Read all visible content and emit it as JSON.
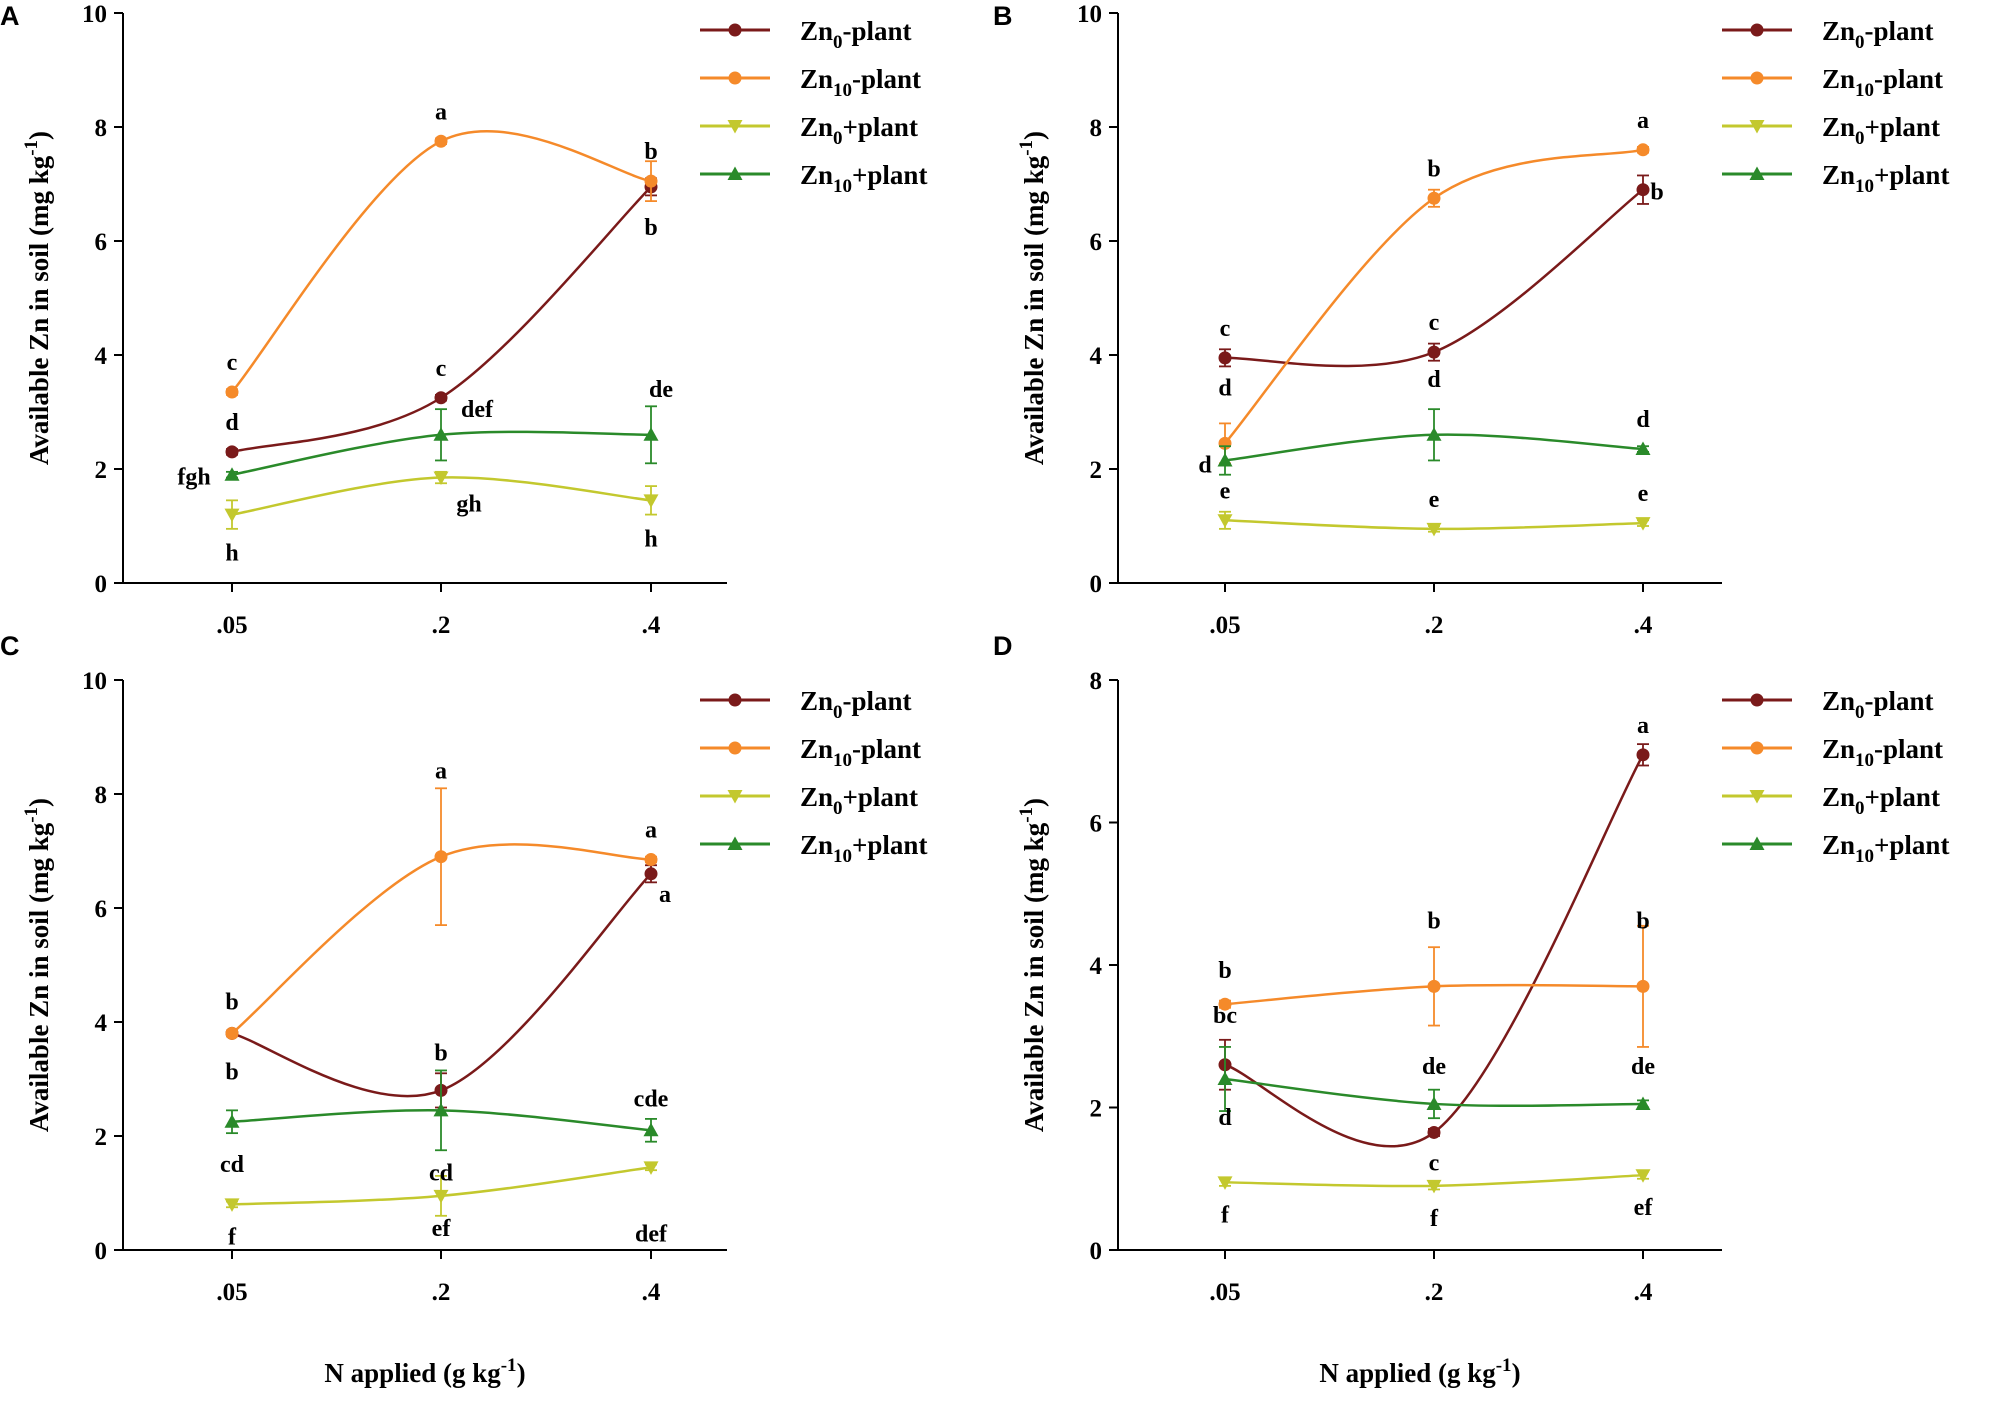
{
  "xlabel": "N applied",
  "xunit": "(g kg",
  "xunit_sup": "-1",
  "xunit_close": ")",
  "ylabel": "Available Zn in soil",
  "yunit": "(mg kg",
  "yunit_sup": "-1",
  "yunit_close": ")",
  "legend": [
    {
      "base": "Zn",
      "sub": "0",
      "suffix": "-plant",
      "color": "#7a1a1a",
      "marker": "circle"
    },
    {
      "base": "Zn",
      "sub": "10",
      "suffix": "-plant",
      "color": "#f58a2a",
      "marker": "circle"
    },
    {
      "base": "Zn",
      "sub": "0",
      "suffix": "+plant",
      "color": "#c3c82e",
      "marker": "triangle-down"
    },
    {
      "base": "Zn",
      "sub": "10",
      "suffix": "+plant",
      "color": "#2a8a2a",
      "marker": "triangle-up"
    }
  ],
  "chart_data": [
    {
      "panel": "A",
      "type": "line",
      "categories": [
        ".05",
        ".2",
        ".4"
      ],
      "ylim": [
        0,
        10
      ],
      "yticks": [
        "0",
        "2",
        "4",
        "6",
        "8",
        "10"
      ],
      "series": [
        {
          "name": "Zn0-plant",
          "values": [
            2.3,
            3.25,
            6.95
          ],
          "errors": [
            0.05,
            0.05,
            0.15
          ],
          "letters": [
            "d",
            "c",
            "b"
          ]
        },
        {
          "name": "Zn10-plant",
          "values": [
            3.35,
            7.75,
            7.05
          ],
          "errors": [
            0.05,
            0.05,
            0.35
          ],
          "letters": [
            "c",
            "a",
            "b"
          ]
        },
        {
          "name": "Zn0+plant",
          "values": [
            1.2,
            1.85,
            1.45
          ],
          "errors": [
            0.25,
            0.1,
            0.25
          ],
          "letters": [
            "h",
            "gh",
            "h"
          ]
        },
        {
          "name": "Zn10+plant",
          "values": [
            1.9,
            2.6,
            2.6
          ],
          "errors": [
            0.05,
            0.45,
            0.5
          ],
          "letters": [
            "fgh",
            "def",
            "de"
          ]
        }
      ]
    },
    {
      "panel": "B",
      "type": "line",
      "categories": [
        ".05",
        ".2",
        ".4"
      ],
      "ylim": [
        0,
        10
      ],
      "yticks": [
        "0",
        "2",
        "4",
        "6",
        "8",
        "10"
      ],
      "series": [
        {
          "name": "Zn0-plant",
          "values": [
            3.95,
            4.05,
            6.9
          ],
          "errors": [
            0.15,
            0.15,
            0.25
          ],
          "letters": [
            "c",
            "c",
            "b"
          ]
        },
        {
          "name": "Zn10-plant",
          "values": [
            2.45,
            6.75,
            7.6
          ],
          "errors": [
            0.35,
            0.15,
            0.05
          ],
          "letters": [
            "d",
            "b",
            "a"
          ]
        },
        {
          "name": "Zn0+plant",
          "values": [
            1.1,
            0.95,
            1.05
          ],
          "errors": [
            0.15,
            0.05,
            0.05
          ],
          "letters": [
            "e",
            "e",
            "e"
          ]
        },
        {
          "name": "Zn10+plant",
          "values": [
            2.15,
            2.6,
            2.35
          ],
          "errors": [
            0.25,
            0.45,
            0.05
          ],
          "letters": [
            "d",
            "d",
            "d"
          ]
        }
      ]
    },
    {
      "panel": "C",
      "type": "line",
      "categories": [
        ".05",
        ".2",
        ".4"
      ],
      "ylim": [
        0,
        10
      ],
      "yticks": [
        "0",
        "2",
        "4",
        "6",
        "8",
        "10"
      ],
      "series": [
        {
          "name": "Zn0-plant",
          "values": [
            3.8,
            2.8,
            6.6
          ],
          "errors": [
            0.05,
            0.3,
            0.15
          ],
          "letters": [
            "b",
            "b",
            "a"
          ]
        },
        {
          "name": "Zn10-plant",
          "values": [
            3.8,
            6.9,
            6.85
          ],
          "errors": [
            0.05,
            1.2,
            0.05
          ],
          "letters": [
            "b",
            "a",
            "a"
          ]
        },
        {
          "name": "Zn0+plant",
          "values": [
            0.8,
            0.95,
            1.45
          ],
          "errors": [
            0.05,
            0.35,
            0.05
          ],
          "letters": [
            "f",
            "ef",
            "def"
          ]
        },
        {
          "name": "Zn10+plant",
          "values": [
            2.25,
            2.45,
            2.1
          ],
          "errors": [
            0.2,
            0.7,
            0.2
          ],
          "letters": [
            "cd",
            "cd",
            "cde"
          ]
        }
      ]
    },
    {
      "panel": "D",
      "type": "line",
      "categories": [
        ".05",
        ".2",
        ".4"
      ],
      "ylim": [
        0,
        8
      ],
      "yticks": [
        "0",
        "2",
        "4",
        "6",
        "8"
      ],
      "series": [
        {
          "name": "Zn0-plant",
          "values": [
            2.6,
            1.65,
            6.95
          ],
          "errors": [
            0.35,
            0.05,
            0.15
          ],
          "letters": [
            "bc",
            "c",
            "a"
          ]
        },
        {
          "name": "Zn10-plant",
          "values": [
            3.45,
            3.7,
            3.7
          ],
          "errors": [
            0.05,
            0.55,
            0.85
          ],
          "letters": [
            "b",
            "b",
            "b"
          ]
        },
        {
          "name": "Zn0+plant",
          "values": [
            0.95,
            0.9,
            1.05
          ],
          "errors": [
            0.05,
            0.05,
            0.05
          ],
          "letters": [
            "f",
            "f",
            "ef"
          ]
        },
        {
          "name": "Zn10+plant",
          "values": [
            2.4,
            2.05,
            2.05
          ],
          "errors": [
            0.45,
            0.2,
            0.05
          ],
          "letters": [
            "d",
            "de",
            "de"
          ]
        }
      ]
    }
  ]
}
